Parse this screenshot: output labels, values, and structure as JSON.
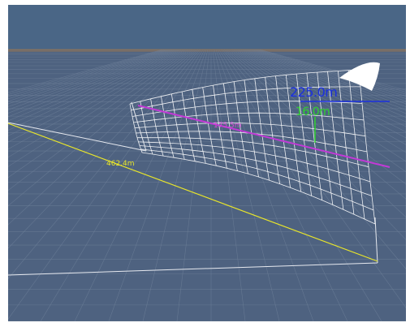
{
  "scene": {
    "colors": {
      "sky": "#4a6686",
      "floor": "#4e6280",
      "grid": "#6f819a",
      "grid_far": "#a07a52",
      "mesh": "#ffffff",
      "sail": "#ffffff"
    },
    "measurements": {
      "length_blue": "225.0m",
      "height_green": "16.0m",
      "length_yellow": "462.4m",
      "length_magenta": "175.5m"
    },
    "measurement_colors": {
      "blue": "#1a2fe0",
      "green": "#2fd12f",
      "yellow": "#e9e62a",
      "magenta": "#c23ad6"
    }
  }
}
